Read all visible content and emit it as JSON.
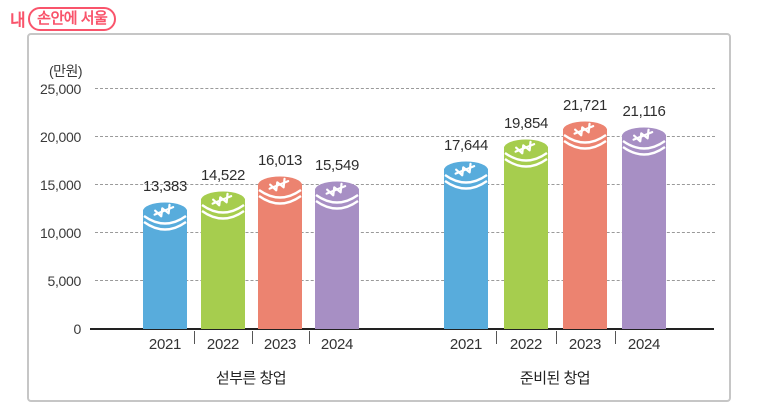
{
  "logo": {
    "prefix": "내",
    "boxed": "손안에 서울",
    "color": "#f9546b"
  },
  "panel": {
    "border_color": "#c6c6c6"
  },
  "chart_data": {
    "type": "bar",
    "title": "",
    "unit_label": "(만원)",
    "xlabel": "",
    "ylabel": "만원",
    "ylim": [
      0,
      25000
    ],
    "ytick_step": 5000,
    "yticks": [
      25000,
      20000,
      15000,
      10000,
      5000,
      0
    ],
    "grid": "horizontal dashed",
    "legend": "none",
    "bar_style": "coin-cylinder with white won-sign cap",
    "bar_colors": [
      "#58acdc",
      "#a6cd4e",
      "#ec8370",
      "#a78fc4"
    ],
    "categories": [
      "2021",
      "2022",
      "2023",
      "2024"
    ],
    "groups": [
      {
        "label": "섣부른 창업",
        "categories": [
          "2021",
          "2022",
          "2023",
          "2024"
        ],
        "values": [
          13383,
          14522,
          16013,
          15549
        ],
        "values_formatted": [
          "13,383",
          "14,522",
          "16,013",
          "15,549"
        ]
      },
      {
        "label": "준비된 창업",
        "categories": [
          "2021",
          "2022",
          "2023",
          "2024"
        ],
        "values": [
          17644,
          19854,
          21721,
          21116
        ],
        "values_formatted": [
          "17,644",
          "19,854",
          "21,721",
          "21,116"
        ]
      }
    ]
  }
}
